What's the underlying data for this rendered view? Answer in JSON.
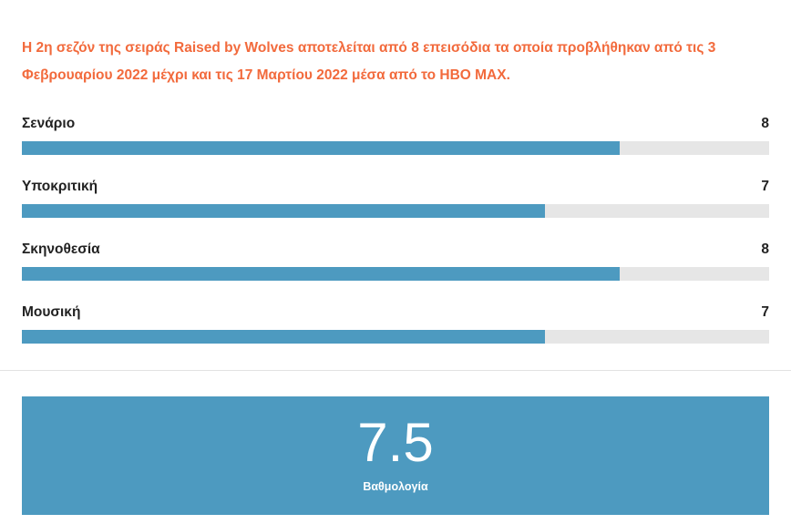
{
  "review": {
    "summary": "Η 2η σεζόν της σειράς Raised by Wolves αποτελείται από 8 επεισόδια τα οποία προβλήθηκαν από τις 3 Φεβρουαρίου 2022 μέχρι και τις 17 Μαρτίου 2022 μέσα από το HBO MAX.",
    "max_score": 10,
    "criteria": [
      {
        "label": "Σενάριο",
        "score": "8"
      },
      {
        "label": "Υποκριτική",
        "score": "7"
      },
      {
        "label": "Σκηνοθεσία",
        "score": "8"
      },
      {
        "label": "Μουσική",
        "score": "7"
      }
    ],
    "total": {
      "score": "7.5",
      "label": "Βαθμολογία"
    }
  },
  "colors": {
    "summary_text": "#f26a3c",
    "bar_fill": "#4d9ac0",
    "bar_track": "#e6e6e6",
    "total_background": "#4d9ac0"
  }
}
